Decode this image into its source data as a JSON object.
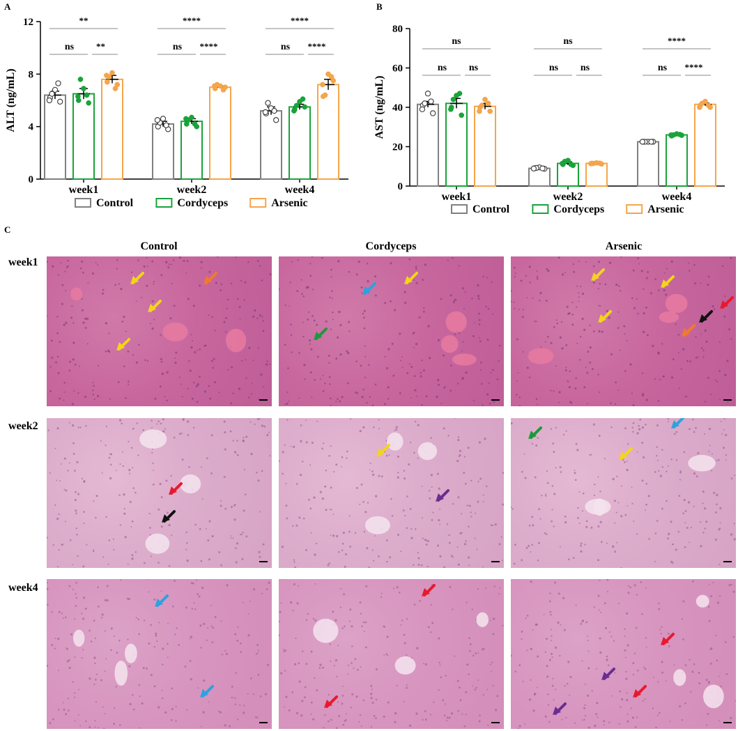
{
  "panels": {
    "a": "A",
    "b": "B",
    "c": "C"
  },
  "colors": {
    "control": "#808080",
    "cordyceps": "#1aa33a",
    "arsenic": "#f5a54a"
  },
  "chart_data": [
    {
      "type": "bar",
      "ylabel": "ALT (ng/mL)",
      "ylim": [
        0,
        12
      ],
      "yticks": [
        "0",
        "4",
        "8",
        "12"
      ],
      "categories": [
        "week1",
        "week2",
        "week4"
      ],
      "series": [
        {
          "name": "Control",
          "values": [
            6.4,
            4.2,
            5.2
          ],
          "sem": [
            0.3,
            0.2,
            0.3
          ],
          "points": [
            [
              6.2,
              6.8,
              5.9,
              6.5,
              7.3,
              6.0
            ],
            [
              4.0,
              4.6,
              3.8,
              4.3,
              4.1,
              4.5
            ],
            [
              5.0,
              5.4,
              4.5,
              5.8,
              5.2,
              5.1
            ]
          ]
        },
        {
          "name": "Cordyceps",
          "values": [
            6.5,
            4.4,
            5.5
          ],
          "sem": [
            0.4,
            0.2,
            0.2
          ],
          "points": [
            [
              6.0,
              6.9,
              5.8,
              7.6,
              6.4,
              6.3
            ],
            [
              4.2,
              4.7,
              4.0,
              4.5,
              4.2,
              4.6
            ],
            [
              5.3,
              5.9,
              5.5,
              5.6,
              6.1,
              5.2
            ]
          ]
        },
        {
          "name": "Arsenic",
          "values": [
            7.6,
            7.0,
            7.2
          ],
          "sem": [
            0.3,
            0.1,
            0.4
          ],
          "points": [
            [
              7.4,
              8.1,
              7.2,
              7.8,
              6.9,
              7.9
            ],
            [
              6.9,
              7.1,
              7.0,
              7.2,
              6.8,
              7.1
            ],
            [
              6.3,
              8.0,
              7.5,
              6.4,
              7.8,
              7.2
            ]
          ]
        }
      ],
      "significance": [
        [
          "**",
          "ns",
          "**"
        ],
        [
          "****",
          "ns",
          "****"
        ],
        [
          "****",
          "ns",
          "****"
        ]
      ]
    },
    {
      "type": "bar",
      "ylabel": "AST (ng/mL)",
      "ylim": [
        0,
        80
      ],
      "yticks": [
        "0",
        "20",
        "40",
        "60",
        "80"
      ],
      "categories": [
        "week1",
        "week2",
        "week4"
      ],
      "series": [
        {
          "name": "Control",
          "values": [
            41.5,
            9.0,
            22.5
          ],
          "sem": [
            1.5,
            0.3,
            0.1
          ],
          "points": [
            [
              41,
              47,
              37,
              42,
              43,
              39
            ],
            [
              9,
              9.5,
              8.8,
              9.2,
              9,
              8.9
            ],
            [
              22.5,
              22.5,
              22.5,
              22.5,
              22.5,
              22.5
            ]
          ]
        },
        {
          "name": "Cordyceps",
          "values": [
            42.0,
            11.5,
            26.0
          ],
          "sem": [
            2.5,
            0.8,
            0.3
          ],
          "points": [
            [
              40,
              46,
              36,
              44,
              47,
              39
            ],
            [
              11,
              13,
              10.5,
              12.5,
              11,
              11.5
            ],
            [
              25.5,
              26.5,
              25.8,
              26,
              26.2,
              25.9
            ]
          ]
        },
        {
          "name": "Arsenic",
          "values": [
            40.5,
            11.5,
            41.5
          ],
          "sem": [
            1.5,
            0.2,
            0.7
          ],
          "points": [
            [
              40,
              44,
              38,
              41,
              42,
              38
            ],
            [
              11.5,
              11.8,
              11.2,
              11.5,
              11.6,
              11.4
            ],
            [
              41,
              43,
              40,
              42,
              41,
              40
            ]
          ]
        }
      ],
      "significance": [
        [
          "ns",
          "ns",
          "ns"
        ],
        [
          "ns",
          "ns",
          "ns"
        ],
        [
          "****",
          "ns",
          "****"
        ]
      ]
    }
  ],
  "legend": [
    "Control",
    "Cordyceps",
    "Arsenic"
  ],
  "histology": {
    "columns": [
      "Control",
      "Cordyceps",
      "Arsenic"
    ],
    "rows": [
      "week1",
      "week2",
      "week4"
    ],
    "arrow_colors": {
      "yellow": "#f2d51b",
      "orange": "#f07b2a",
      "blue": "#2aa3e0",
      "green": "#1a9a3c",
      "red": "#e8192c",
      "black": "#111111",
      "purple": "#6a2d91"
    }
  }
}
